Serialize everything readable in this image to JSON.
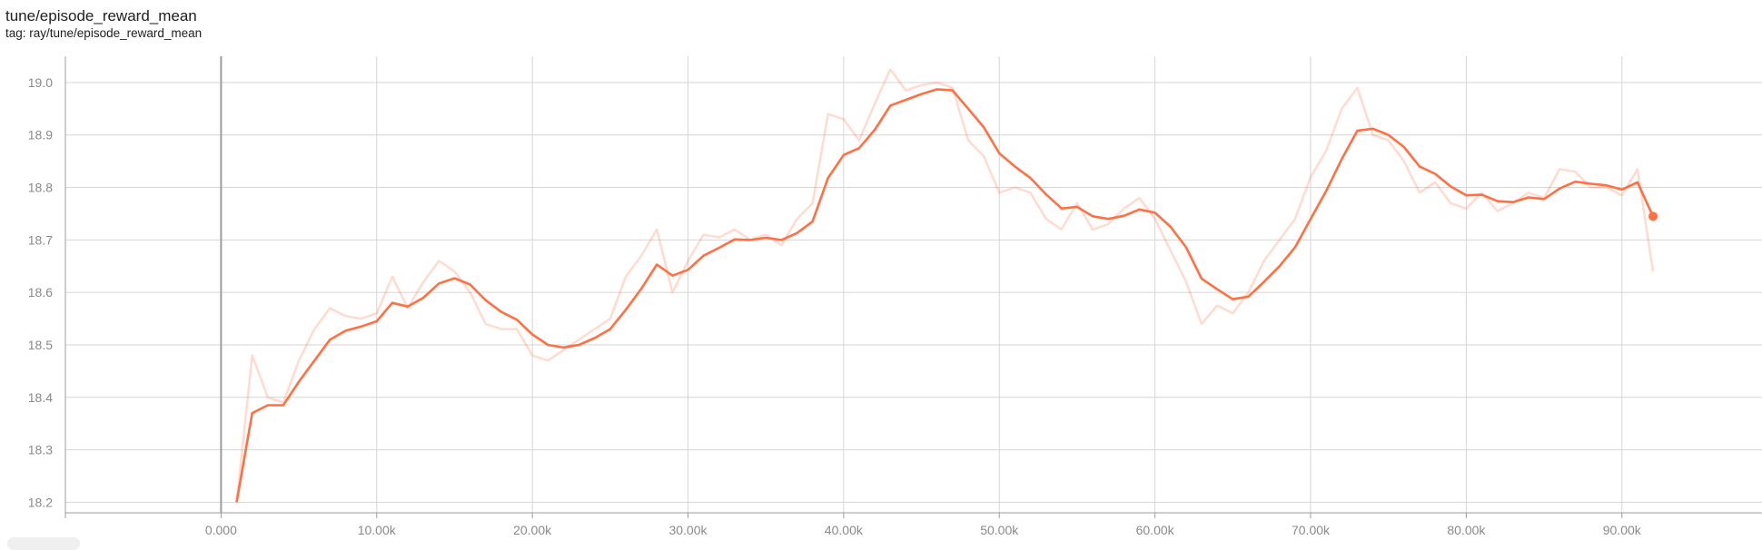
{
  "header": {
    "title": "tune/episode_reward_mean",
    "tag": "tag: ray/tune/episode_reward_mean"
  },
  "chart_data": {
    "type": "line",
    "title": "tune/episode_reward_mean",
    "subtitle": "tag: ray/tune/episode_reward_mean",
    "xlabel": "",
    "ylabel": "",
    "xlim": [
      -10000,
      99000
    ],
    "ylim": [
      18.18,
      19.05
    ],
    "x_ticks": [
      0,
      10000,
      20000,
      30000,
      40000,
      50000,
      60000,
      70000,
      80000,
      90000
    ],
    "x_tick_labels": [
      "0.000",
      "10.00k",
      "20.00k",
      "30.00k",
      "40.00k",
      "50.00k",
      "60.00k",
      "70.00k",
      "80.00k",
      "90.00k"
    ],
    "y_ticks": [
      18.2,
      18.3,
      18.4,
      18.5,
      18.6,
      18.7,
      18.8,
      18.9,
      19.0
    ],
    "y_tick_labels": [
      "18.2",
      "18.3",
      "18.4",
      "18.5",
      "18.6",
      "18.7",
      "18.8",
      "18.9",
      "19.0"
    ],
    "grid": true,
    "legend": "none",
    "colors": {
      "series": "#ff7043",
      "grid": "#d6d6d6",
      "tick_text": "#8a8a8a",
      "zero_line": "#9e9e9e"
    },
    "series": [
      {
        "style": "raw",
        "x": [
          1000,
          2000,
          3000,
          4000,
          5000,
          6000,
          7000,
          8000,
          9000,
          10000,
          11000,
          12000,
          13000,
          14000,
          15000,
          16000,
          17000,
          18000,
          19000,
          20000,
          21000,
          22000,
          23000,
          24000,
          25000,
          26000,
          27000,
          28000,
          29000,
          30000,
          31000,
          32000,
          33000,
          34000,
          35000,
          36000,
          37000,
          38000,
          39000,
          40000,
          41000,
          42000,
          43000,
          44000,
          45000,
          46000,
          47000,
          48000,
          49000,
          50000,
          51000,
          52000,
          53000,
          54000,
          55000,
          56000,
          57000,
          58000,
          59000,
          60000,
          61000,
          62000,
          63000,
          64000,
          65000,
          66000,
          67000,
          68000,
          69000,
          70000,
          71000,
          72000,
          73000,
          74000,
          75000,
          76000,
          77000,
          78000,
          79000,
          80000,
          81000,
          82000,
          83000,
          84000,
          85000,
          86000,
          87000,
          88000,
          89000,
          90000,
          91000,
          92000
        ],
        "y": [
          18.2,
          18.48,
          18.4,
          18.39,
          18.47,
          18.53,
          18.57,
          18.555,
          18.55,
          18.56,
          18.63,
          18.57,
          18.62,
          18.66,
          18.64,
          18.6,
          18.54,
          18.53,
          18.53,
          18.48,
          18.47,
          18.49,
          18.51,
          18.53,
          18.55,
          18.63,
          18.67,
          18.72,
          18.6,
          18.66,
          18.71,
          18.705,
          18.72,
          18.7,
          18.71,
          18.69,
          18.74,
          18.77,
          18.94,
          18.93,
          18.89,
          18.96,
          19.025,
          18.985,
          18.995,
          19.0,
          18.99,
          18.89,
          18.86,
          18.79,
          18.8,
          18.79,
          18.74,
          18.72,
          18.77,
          18.72,
          18.73,
          18.76,
          18.78,
          18.74,
          18.68,
          18.62,
          18.54,
          18.575,
          18.56,
          18.6,
          18.66,
          18.7,
          18.74,
          18.82,
          18.87,
          18.95,
          18.99,
          18.9,
          18.89,
          18.85,
          18.79,
          18.81,
          18.77,
          18.76,
          18.79,
          18.755,
          18.77,
          18.79,
          18.78,
          18.835,
          18.83,
          18.8,
          18.8,
          18.785,
          18.835,
          18.64
        ]
      },
      {
        "style": "smoothed",
        "x": [
          1000,
          2000,
          3000,
          4000,
          5000,
          6000,
          7000,
          8000,
          9000,
          10000,
          11000,
          12000,
          13000,
          14000,
          15000,
          16000,
          17000,
          18000,
          19000,
          20000,
          21000,
          22000,
          23000,
          24000,
          25000,
          26000,
          27000,
          28000,
          29000,
          30000,
          31000,
          32000,
          33000,
          34000,
          35000,
          36000,
          37000,
          38000,
          39000,
          40000,
          41000,
          42000,
          43000,
          44000,
          45000,
          46000,
          47000,
          48000,
          49000,
          50000,
          51000,
          52000,
          53000,
          54000,
          55000,
          56000,
          57000,
          58000,
          59000,
          60000,
          61000,
          62000,
          63000,
          64000,
          65000,
          66000,
          67000,
          68000,
          69000,
          70000,
          71000,
          72000,
          73000,
          74000,
          75000,
          76000,
          77000,
          78000,
          79000,
          80000,
          81000,
          82000,
          83000,
          84000,
          85000,
          86000,
          87000,
          88000,
          89000,
          90000,
          91000,
          92000
        ],
        "y": [
          18.2,
          18.37,
          18.385,
          18.385,
          18.43,
          18.47,
          18.51,
          18.527,
          18.535,
          18.545,
          18.58,
          18.573,
          18.59,
          18.617,
          18.627,
          18.615,
          18.585,
          18.563,
          18.548,
          18.52,
          18.5,
          18.495,
          18.5,
          18.513,
          18.53,
          18.567,
          18.607,
          18.653,
          18.632,
          18.643,
          18.67,
          18.685,
          18.701,
          18.7,
          18.704,
          18.7,
          18.713,
          18.735,
          18.818,
          18.862,
          18.875,
          18.91,
          18.956,
          18.967,
          18.978,
          18.987,
          18.985,
          18.95,
          18.915,
          18.865,
          18.84,
          18.818,
          18.787,
          18.76,
          18.763,
          18.745,
          18.74,
          18.746,
          18.758,
          18.752,
          18.725,
          18.686,
          18.626,
          18.606,
          18.587,
          18.592,
          18.62,
          18.65,
          18.686,
          18.74,
          18.793,
          18.854,
          18.908,
          18.912,
          18.9,
          18.877,
          18.84,
          18.826,
          18.802,
          18.785,
          18.786,
          18.774,
          18.772,
          18.781,
          18.778,
          18.798,
          18.811,
          18.807,
          18.804,
          18.796,
          18.81,
          18.745
        ]
      }
    ],
    "last_point": {
      "x": 92000,
      "y": 18.745
    }
  }
}
